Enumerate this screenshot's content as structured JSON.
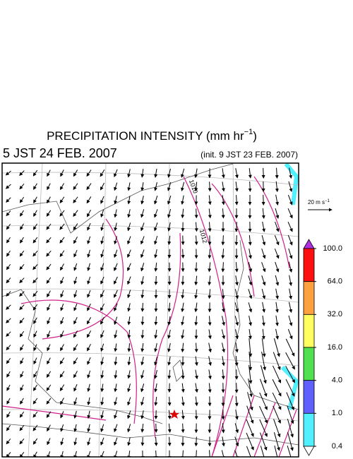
{
  "title": {
    "text": "PRECIPITATION INTENSITY (mm hr",
    "sup": "−1",
    "end": ")"
  },
  "valid_time": "5 JST 24 FEB. 2007",
  "init_time": "(init. 9 JST 23 FEB. 2007)",
  "wind_scale": {
    "text": "20 m s",
    "sup": "−1"
  },
  "isobars": [
    "1010",
    "1012"
  ],
  "colorbar": {
    "levels": [
      {
        "value": 100,
        "label": "100.0"
      },
      {
        "value": 64,
        "label": "64.0"
      },
      {
        "value": 32,
        "label": "32.0"
      },
      {
        "value": 16,
        "label": "16.0"
      },
      {
        "value": 4,
        "label": "4.0"
      },
      {
        "value": 1,
        "label": "1.0"
      },
      {
        "value": 0.4,
        "label": "0.4"
      }
    ],
    "colors": [
      "#b030e0",
      "#ff1010",
      "#ffa040",
      "#ffff60",
      "#50e050",
      "#6060ff",
      "#50f0ff",
      "#ffffff"
    ]
  }
}
